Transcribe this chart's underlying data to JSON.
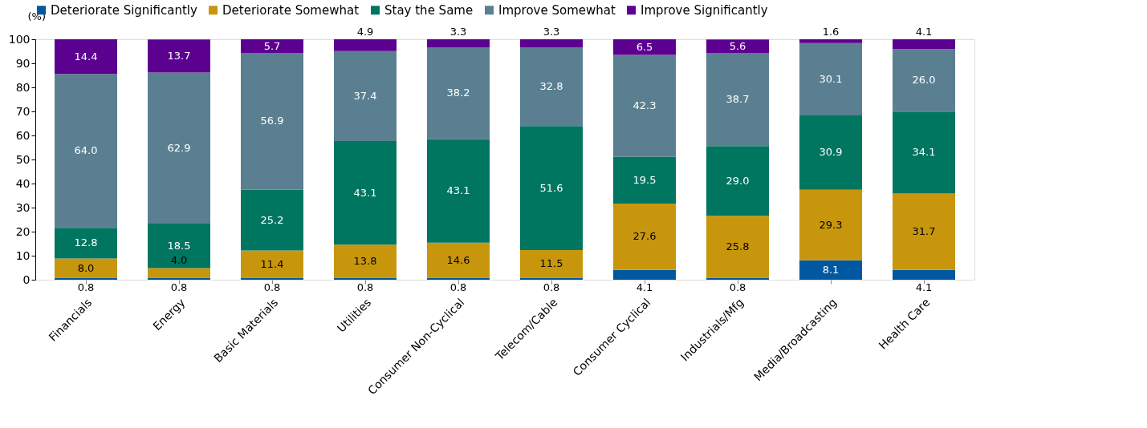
{
  "chart_data": {
    "type": "bar",
    "stacked": true,
    "ylabel": "(%)",
    "categories": [
      "Financials",
      "Energy",
      "Basic Materials",
      "Utilities",
      "Consumer Non-Cyclical",
      "Telecom/Cable",
      "Consumer Cyclical",
      "Industrials/Mfg",
      "Media/Broadcasting",
      "Health Care"
    ],
    "series": [
      {
        "name": "Deteriorate Significantly",
        "color": "#0058a0",
        "values": [
          0.8,
          0.8,
          0.8,
          0.8,
          0.8,
          0.8,
          4.1,
          0.8,
          8.1,
          4.1
        ],
        "value_labels": [
          "0.8",
          "0.8",
          "0.8",
          "0.8",
          "0.8",
          "0.8",
          "4.1",
          "0.8",
          "8.1",
          "4.1"
        ]
      },
      {
        "name": "Deteriorate Somewhat",
        "color": "#c8960c",
        "values": [
          8.0,
          4.0,
          11.4,
          13.8,
          14.6,
          11.5,
          27.6,
          25.8,
          29.3,
          31.7
        ],
        "value_labels": [
          "8.0",
          "4.0",
          "11.4",
          "13.8",
          "14.6",
          "11.5",
          "27.6",
          "25.8",
          "29.3",
          "31.7"
        ]
      },
      {
        "name": "Stay the Same",
        "color": "#007560",
        "values": [
          12.8,
          18.5,
          25.2,
          43.1,
          43.1,
          51.6,
          19.5,
          29.0,
          30.9,
          34.1
        ],
        "value_labels": [
          "12.8",
          "18.5",
          "25.2",
          "43.1",
          "43.1",
          "51.6",
          "19.5",
          "29.0",
          "30.9",
          "34.1"
        ]
      },
      {
        "name": "Improve Somewhat",
        "color": "#5a7f91",
        "values": [
          64.0,
          62.9,
          56.9,
          37.4,
          38.2,
          32.8,
          42.3,
          38.7,
          30.1,
          26.0
        ],
        "value_labels": [
          "64.0",
          "62.9",
          "56.9",
          "37.4",
          "38.2",
          "32.8",
          "42.3",
          "38.7",
          "30.1",
          "26.0"
        ]
      },
      {
        "name": "Improve Significantly",
        "color": "#5c0090",
        "values": [
          14.4,
          13.7,
          5.7,
          4.9,
          3.3,
          3.3,
          6.5,
          5.6,
          1.6,
          4.1
        ],
        "value_labels": [
          "14.4",
          "13.7",
          "5.7",
          "4.9",
          "3.3",
          "3.3",
          "6.5",
          "5.6",
          "1.6",
          "4.1"
        ]
      }
    ],
    "ylim": [
      0,
      100
    ],
    "yticks": [
      0,
      10,
      20,
      30,
      40,
      50,
      60,
      70,
      80,
      90,
      100
    ],
    "grid": false,
    "legend": "top",
    "data_labels": true
  }
}
